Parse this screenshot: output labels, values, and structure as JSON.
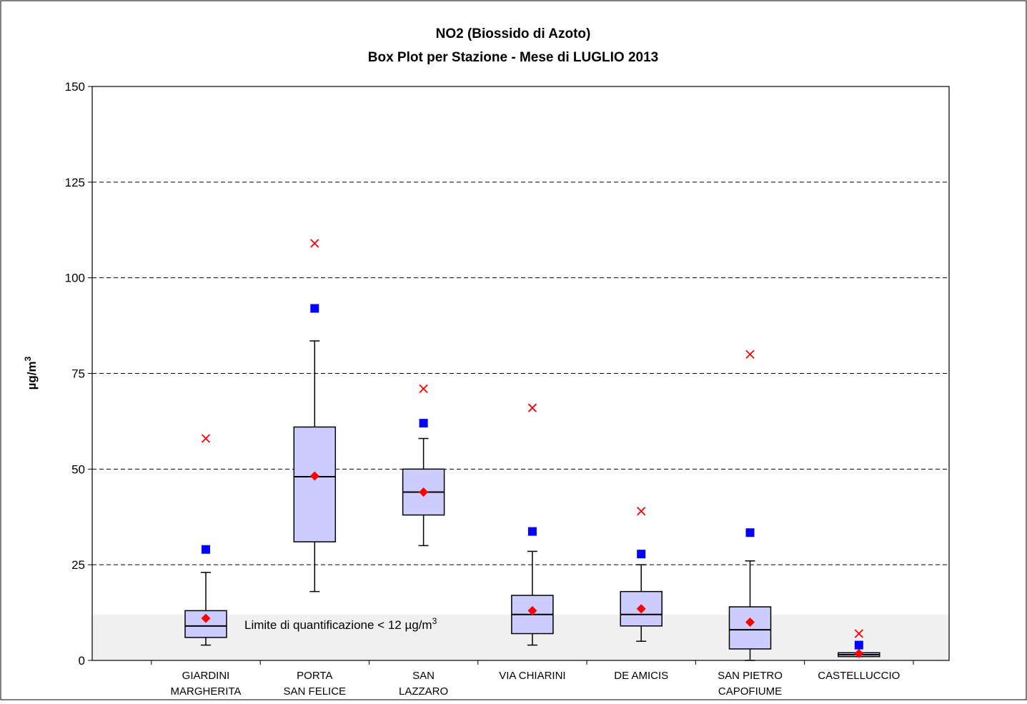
{
  "chart_data": {
    "type": "boxplot",
    "title": [
      "NO2 (Biossido di Azoto)",
      "Box Plot per Stazione - Mese di LUGLIO 2013"
    ],
    "ylabel_base": "µg/m",
    "ylabel_sup": "3",
    "ylim": [
      0,
      150
    ],
    "yticks": [
      0,
      25,
      50,
      75,
      100,
      125,
      150
    ],
    "grid": "horizontal dashed",
    "legend": "none",
    "colors": {
      "box_fill": "#CCCCFF",
      "mean": "#FF0000",
      "max": "#FF0000",
      "p98": "#0000FF",
      "shaded_band": "#F0F0F0"
    },
    "shaded_band": {
      "upper": 12,
      "label": "Limite di quantificazione < 12 µg/m",
      "label_sup": "3"
    },
    "categories": [
      [
        "GIARDINI",
        "MARGHERITA"
      ],
      [
        "PORTA",
        "SAN FELICE"
      ],
      [
        "SAN",
        "LAZZARO"
      ],
      [
        "VIA CHIARINI"
      ],
      [
        "DE AMICIS"
      ],
      [
        "SAN PIETRO",
        "CAPOFIUME"
      ],
      [
        "CASTELLUCCIO"
      ]
    ],
    "stations": [
      {
        "whisker_low": 4,
        "q1": 6,
        "median": 9,
        "q3": 13,
        "whisker_high": 23,
        "mean": 11,
        "p98": 29,
        "max": 58
      },
      {
        "whisker_low": 18,
        "q1": 31,
        "median": 48,
        "q3": 61,
        "whisker_high": 83.5,
        "mean": 48.2,
        "p98": 92,
        "max": 109
      },
      {
        "whisker_low": 30,
        "q1": 38,
        "median": 44,
        "q3": 50,
        "whisker_high": 58,
        "mean": 44,
        "p98": 62,
        "max": 71
      },
      {
        "whisker_low": 4,
        "q1": 7,
        "median": 12,
        "q3": 17,
        "whisker_high": 28.5,
        "mean": 13,
        "p98": 33.7,
        "max": 66
      },
      {
        "whisker_low": 5,
        "q1": 9,
        "median": 12,
        "q3": 18,
        "whisker_high": 25,
        "mean": 13.5,
        "p98": 27.8,
        "max": 39
      },
      {
        "whisker_low": 0,
        "q1": 3,
        "median": 8,
        "q3": 14,
        "whisker_high": 26,
        "mean": 10,
        "p98": 33.4,
        "max": 80
      },
      {
        "whisker_low": 1,
        "q1": 1,
        "median": 1.5,
        "q3": 2,
        "whisker_high": 2,
        "mean": 1.8,
        "p98": 4,
        "max": 7
      }
    ]
  }
}
